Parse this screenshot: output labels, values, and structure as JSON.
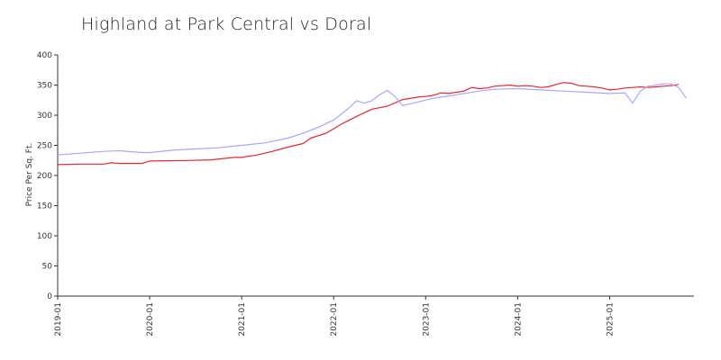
{
  "chart_data": {
    "type": "line",
    "title": "Highland at Park Central vs Doral",
    "xlabel": "",
    "ylabel": "Price Per Sq. Ft.",
    "ylim": [
      0,
      400
    ],
    "yticks": [
      0,
      50,
      100,
      150,
      200,
      250,
      300,
      350,
      400
    ],
    "xlim": [
      "2019-01",
      "2025-12"
    ],
    "xticks": [
      "2019-01",
      "2020-01",
      "2021-01",
      "2022-01",
      "2023-01",
      "2024-01",
      "2025-01"
    ],
    "grid": false,
    "legend": "none",
    "series": [
      {
        "color": "#e8262b",
        "points": [
          [
            "2019-01",
            218
          ],
          [
            "2019-04",
            219
          ],
          [
            "2019-07",
            219
          ],
          [
            "2019-08",
            221
          ],
          [
            "2019-09",
            220
          ],
          [
            "2019-12",
            220
          ],
          [
            "2020-01",
            224
          ],
          [
            "2020-06",
            225
          ],
          [
            "2020-09",
            226
          ],
          [
            "2020-12",
            230
          ],
          [
            "2021-01",
            230
          ],
          [
            "2021-03",
            234
          ],
          [
            "2021-05",
            240
          ],
          [
            "2021-07",
            247
          ],
          [
            "2021-09",
            253
          ],
          [
            "2021-10",
            262
          ],
          [
            "2021-12",
            270
          ],
          [
            "2022-02",
            285
          ],
          [
            "2022-04",
            298
          ],
          [
            "2022-06",
            310
          ],
          [
            "2022-08",
            315
          ],
          [
            "2022-10",
            326
          ],
          [
            "2022-12",
            330
          ],
          [
            "2023-01",
            331
          ],
          [
            "2023-02",
            333
          ],
          [
            "2023-03",
            337
          ],
          [
            "2023-04",
            336
          ],
          [
            "2023-05",
            338
          ],
          [
            "2023-06",
            340
          ],
          [
            "2023-07",
            346
          ],
          [
            "2023-08",
            344
          ],
          [
            "2023-09",
            345
          ],
          [
            "2023-10",
            348
          ],
          [
            "2023-11",
            349
          ],
          [
            "2023-12",
            350
          ],
          [
            "2024-01",
            348
          ],
          [
            "2024-02",
            349
          ],
          [
            "2024-03",
            348
          ],
          [
            "2024-04",
            346
          ],
          [
            "2024-05",
            347
          ],
          [
            "2024-06",
            351
          ],
          [
            "2024-07",
            354
          ],
          [
            "2024-08",
            353
          ],
          [
            "2024-09",
            349
          ],
          [
            "2024-10",
            348
          ],
          [
            "2024-11",
            347
          ],
          [
            "2024-12",
            345
          ],
          [
            "2025-01",
            342
          ],
          [
            "2025-02",
            343
          ],
          [
            "2025-03",
            345
          ],
          [
            "2025-04",
            346
          ],
          [
            "2025-05",
            347
          ],
          [
            "2025-06",
            346
          ],
          [
            "2025-07",
            347
          ],
          [
            "2025-08",
            348
          ],
          [
            "2025-09",
            349
          ],
          [
            "2025-10",
            351
          ]
        ]
      },
      {
        "color": "#a6a6ff",
        "points": [
          [
            "2019-01",
            234
          ],
          [
            "2019-04",
            237
          ],
          [
            "2019-07",
            240
          ],
          [
            "2019-09",
            241
          ],
          [
            "2019-12",
            238
          ],
          [
            "2020-01",
            238
          ],
          [
            "2020-04",
            242
          ],
          [
            "2020-07",
            244
          ],
          [
            "2020-10",
            246
          ],
          [
            "2021-01",
            250
          ],
          [
            "2021-04",
            254
          ],
          [
            "2021-07",
            262
          ],
          [
            "2021-09",
            270
          ],
          [
            "2021-11",
            280
          ],
          [
            "2022-01",
            292
          ],
          [
            "2022-02",
            302
          ],
          [
            "2022-03",
            312
          ],
          [
            "2022-04",
            324
          ],
          [
            "2022-05",
            320
          ],
          [
            "2022-06",
            324
          ],
          [
            "2022-07",
            334
          ],
          [
            "2022-08",
            341
          ],
          [
            "2022-09",
            331
          ],
          [
            "2022-10",
            316
          ],
          [
            "2022-12",
            322
          ],
          [
            "2023-02",
            328
          ],
          [
            "2023-04",
            332
          ],
          [
            "2023-06",
            336
          ],
          [
            "2023-08",
            340
          ],
          [
            "2023-10",
            343
          ],
          [
            "2024-01",
            344
          ],
          [
            "2024-04",
            342
          ],
          [
            "2024-07",
            340
          ],
          [
            "2024-10",
            338
          ],
          [
            "2025-01",
            336
          ],
          [
            "2025-03",
            337
          ],
          [
            "2025-04",
            320
          ],
          [
            "2025-05",
            340
          ],
          [
            "2025-06",
            348
          ],
          [
            "2025-08",
            352
          ],
          [
            "2025-09",
            352
          ],
          [
            "2025-10",
            346
          ],
          [
            "2025-11",
            328
          ]
        ]
      }
    ]
  }
}
